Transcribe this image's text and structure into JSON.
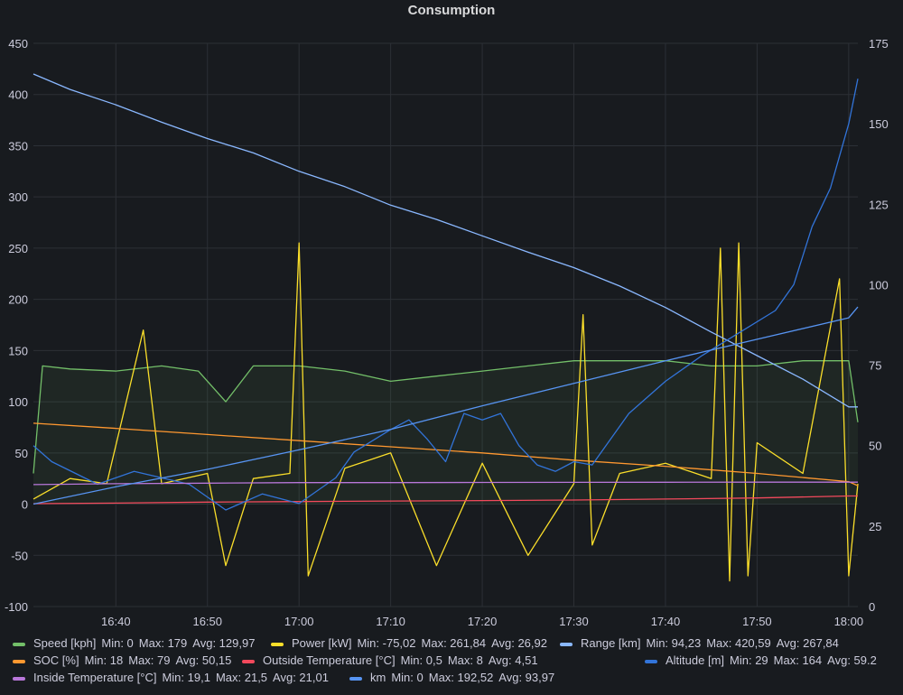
{
  "chart_data": {
    "type": "line",
    "title": "Consumption",
    "x_range": [
      "16:31",
      "18:01"
    ],
    "x_ticks": [
      "16:40",
      "16:50",
      "17:00",
      "17:10",
      "17:20",
      "17:30",
      "17:40",
      "17:50",
      "18:00"
    ],
    "y_left": {
      "min": -100,
      "max": 450,
      "ticks": [
        "-100",
        "-50",
        "0",
        "50",
        "100",
        "150",
        "200",
        "250",
        "300",
        "350",
        "400",
        "450"
      ]
    },
    "y_right": {
      "min": 0,
      "max": 175,
      "ticks": [
        "0",
        "25",
        "50",
        "75",
        "100",
        "125",
        "150",
        "175"
      ]
    },
    "grid": true,
    "legend_position": "bottom",
    "series": [
      {
        "name": "Speed [kph]",
        "color": "#73bf69",
        "axis": "left",
        "fill": true,
        "points": [
          [
            "16:31",
            30
          ],
          [
            "16:32",
            135
          ],
          [
            "16:35",
            132
          ],
          [
            "16:40",
            130
          ],
          [
            "16:45",
            135
          ],
          [
            "16:49",
            130
          ],
          [
            "16:52",
            100
          ],
          [
            "16:55",
            135
          ],
          [
            "17:00",
            135
          ],
          [
            "17:05",
            130
          ],
          [
            "17:10",
            120
          ],
          [
            "17:15",
            125
          ],
          [
            "17:20",
            130
          ],
          [
            "17:25",
            135
          ],
          [
            "17:30",
            140
          ],
          [
            "17:35",
            140
          ],
          [
            "17:40",
            140
          ],
          [
            "17:45",
            135
          ],
          [
            "17:50",
            135
          ],
          [
            "17:55",
            140
          ],
          [
            "18:00",
            140
          ],
          [
            "18:01",
            80
          ]
        ],
        "stats": {
          "min": "0",
          "max": "179",
          "avg": "129,97"
        }
      },
      {
        "name": "Power [kW]",
        "color": "#fade2a",
        "axis": "left",
        "points": [
          [
            "16:31",
            5
          ],
          [
            "16:35",
            25
          ],
          [
            "16:39",
            20
          ],
          [
            "16:43",
            170
          ],
          [
            "16:45",
            20
          ],
          [
            "16:50",
            30
          ],
          [
            "16:52",
            -60
          ],
          [
            "16:55",
            25
          ],
          [
            "16:59",
            30
          ],
          [
            "17:00",
            255
          ],
          [
            "17:01",
            -70
          ],
          [
            "17:05",
            35
          ],
          [
            "17:10",
            50
          ],
          [
            "17:15",
            -60
          ],
          [
            "17:20",
            40
          ],
          [
            "17:25",
            -50
          ],
          [
            "17:30",
            20
          ],
          [
            "17:31",
            185
          ],
          [
            "17:32",
            -40
          ],
          [
            "17:35",
            30
          ],
          [
            "17:40",
            40
          ],
          [
            "17:45",
            25
          ],
          [
            "17:46",
            250
          ],
          [
            "17:47",
            -75
          ],
          [
            "17:48",
            255
          ],
          [
            "17:49",
            -70
          ],
          [
            "17:50",
            60
          ],
          [
            "17:55",
            30
          ],
          [
            "17:59",
            220
          ],
          [
            "18:00",
            -70
          ],
          [
            "18:01",
            20
          ]
        ],
        "stats": {
          "min": "-75,02",
          "max": "261,84",
          "avg": "26,92"
        }
      },
      {
        "name": "Range [km]",
        "color": "#8ab8ff",
        "axis": "left",
        "points": [
          [
            "16:31",
            420
          ],
          [
            "16:35",
            405
          ],
          [
            "16:40",
            390
          ],
          [
            "16:45",
            373
          ],
          [
            "16:50",
            357
          ],
          [
            "16:55",
            343
          ],
          [
            "17:00",
            325
          ],
          [
            "17:05",
            310
          ],
          [
            "17:10",
            292
          ],
          [
            "17:15",
            278
          ],
          [
            "17:20",
            262
          ],
          [
            "17:25",
            246
          ],
          [
            "17:30",
            231
          ],
          [
            "17:35",
            213
          ],
          [
            "17:40",
            192
          ],
          [
            "17:45",
            168
          ],
          [
            "17:50",
            145
          ],
          [
            "17:55",
            122
          ],
          [
            "18:00",
            95
          ],
          [
            "18:01",
            95
          ]
        ],
        "stats": {
          "min": "94,23",
          "max": "420,59",
          "avg": "267,84"
        }
      },
      {
        "name": "SOC [%]",
        "color": "#ff9830",
        "axis": "left",
        "points": [
          [
            "16:31",
            79
          ],
          [
            "16:40",
            74
          ],
          [
            "16:50",
            68
          ],
          [
            "17:00",
            62
          ],
          [
            "17:10",
            56
          ],
          [
            "17:20",
            50
          ],
          [
            "17:30",
            43
          ],
          [
            "17:40",
            37
          ],
          [
            "17:50",
            30
          ],
          [
            "18:00",
            22
          ],
          [
            "18:01",
            18
          ]
        ],
        "stats": {
          "min": "18",
          "max": "79",
          "avg": "50,15"
        }
      },
      {
        "name": "Outside Temperature [°C]",
        "color": "#f2495c",
        "axis": "left",
        "points": [
          [
            "16:31",
            0.5
          ],
          [
            "16:40",
            1
          ],
          [
            "16:50",
            2
          ],
          [
            "17:00",
            2.5
          ],
          [
            "17:10",
            3
          ],
          [
            "17:20",
            3.5
          ],
          [
            "17:30",
            4
          ],
          [
            "17:40",
            5
          ],
          [
            "17:50",
            6
          ],
          [
            "18:00",
            8
          ],
          [
            "18:01",
            8
          ]
        ],
        "stats": {
          "min": "0,5",
          "max": "8",
          "avg": "4,51"
        }
      },
      {
        "name": "Altitude [m]",
        "color": "#3274d9",
        "axis": "right",
        "points": [
          [
            "16:31",
            50
          ],
          [
            "16:33",
            45
          ],
          [
            "16:38",
            38
          ],
          [
            "16:42",
            42
          ],
          [
            "16:48",
            38
          ],
          [
            "16:52",
            30
          ],
          [
            "16:56",
            35
          ],
          [
            "17:00",
            32
          ],
          [
            "17:04",
            40
          ],
          [
            "17:06",
            48
          ],
          [
            "17:10",
            55
          ],
          [
            "17:12",
            58
          ],
          [
            "17:14",
            52
          ],
          [
            "17:16",
            45
          ],
          [
            "17:18",
            60
          ],
          [
            "17:20",
            58
          ],
          [
            "17:22",
            60
          ],
          [
            "17:24",
            50
          ],
          [
            "17:26",
            44
          ],
          [
            "17:28",
            42
          ],
          [
            "17:30",
            45
          ],
          [
            "17:32",
            44
          ],
          [
            "17:36",
            60
          ],
          [
            "17:40",
            70
          ],
          [
            "17:44",
            78
          ],
          [
            "17:48",
            85
          ],
          [
            "17:52",
            92
          ],
          [
            "17:54",
            100
          ],
          [
            "17:56",
            118
          ],
          [
            "17:58",
            130
          ],
          [
            "18:00",
            150
          ],
          [
            "18:01",
            164
          ]
        ],
        "stats": {
          "min": "29",
          "max": "164",
          "avg": "59.2"
        }
      },
      {
        "name": "Inside Temperature [°C]",
        "color": "#b877d9",
        "axis": "left",
        "points": [
          [
            "16:31",
            19.1
          ],
          [
            "16:40",
            20
          ],
          [
            "16:50",
            20.5
          ],
          [
            "17:00",
            21
          ],
          [
            "17:10",
            21
          ],
          [
            "17:20",
            21.2
          ],
          [
            "17:30",
            21.3
          ],
          [
            "17:40",
            21.4
          ],
          [
            "17:50",
            21.5
          ],
          [
            "18:00",
            21.5
          ],
          [
            "18:01",
            21.5
          ]
        ],
        "stats": {
          "min": "19,1",
          "max": "21,5",
          "avg": "21,01"
        }
      },
      {
        "name": "km",
        "color": "#5794f2",
        "axis": "left",
        "points": [
          [
            "16:31",
            0
          ],
          [
            "16:40",
            17
          ],
          [
            "16:50",
            34
          ],
          [
            "17:00",
            53
          ],
          [
            "17:10",
            73
          ],
          [
            "17:20",
            96
          ],
          [
            "17:30",
            118
          ],
          [
            "17:40",
            140
          ],
          [
            "17:50",
            161
          ],
          [
            "18:00",
            182
          ],
          [
            "18:01",
            192.5
          ]
        ],
        "stats": {
          "min": "0",
          "max": "192,52",
          "avg": "93,97"
        }
      }
    ]
  },
  "legend": {
    "min_label": "Min:",
    "max_label": "Max:",
    "avg_label": "Avg:"
  }
}
